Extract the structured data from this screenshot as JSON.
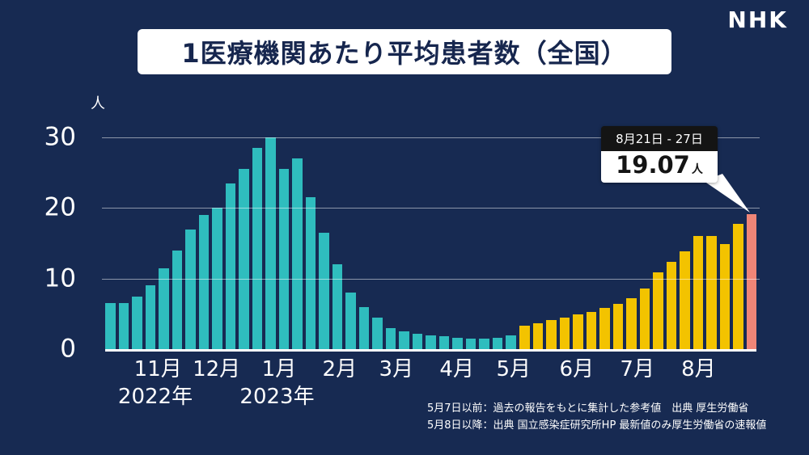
{
  "brand": {
    "logo": "NHK"
  },
  "header": {
    "title": "1医療機関あたり平均患者数（全国）"
  },
  "chart_data": {
    "type": "bar",
    "title": "1医療機関あたり平均患者数（全国）",
    "unit_label": "人",
    "ylim": [
      0,
      30
    ],
    "yticks": [
      30,
      20,
      10,
      0
    ],
    "grid": "horizontal",
    "legend_position": "none",
    "segments": [
      {
        "name": "5月7日以前（参考値・厚生労働省）",
        "color": "#2fbdbe",
        "values": [
          6.5,
          6.5,
          7.5,
          9.0,
          11.5,
          14.0,
          17.0,
          19.0,
          20.0,
          23.5,
          25.5,
          28.5,
          30.0,
          25.5,
          27.0,
          21.5,
          16.5,
          12.0,
          8.0,
          6.0,
          4.5,
          3.0,
          2.5,
          2.2,
          2.0,
          1.8,
          1.6,
          1.5,
          1.5,
          1.6,
          1.9
        ]
      },
      {
        "name": "5月8日以降（国立感染症研究所HP）",
        "color": "#f3c300",
        "values": [
          3.3,
          3.7,
          4.1,
          4.5,
          4.9,
          5.3,
          5.8,
          6.4,
          7.2,
          8.6,
          10.9,
          12.4,
          13.9,
          16.0,
          16.0,
          14.9,
          17.8
        ]
      },
      {
        "name": "最新値（厚生労働省の速報値）",
        "color": "#ef8577",
        "values": [
          19.07
        ]
      }
    ],
    "months": [
      {
        "label": "11月",
        "pos": 0.081
      },
      {
        "label": "12月",
        "pos": 0.171
      },
      {
        "label": "1月",
        "pos": 0.267
      },
      {
        "label": "2月",
        "pos": 0.36
      },
      {
        "label": "3月",
        "pos": 0.447
      },
      {
        "label": "4月",
        "pos": 0.54
      },
      {
        "label": "5月",
        "pos": 0.627
      },
      {
        "label": "6月",
        "pos": 0.724
      },
      {
        "label": "7月",
        "pos": 0.817
      },
      {
        "label": "8月",
        "pos": 0.911
      }
    ],
    "years": [
      {
        "label": "2022年",
        "pos": 0.077
      },
      {
        "label": "2023年",
        "pos": 0.264
      }
    ],
    "callout": {
      "date_range": "8月21日 - 27日",
      "value": "19.07",
      "unit": "人"
    }
  },
  "footnotes": [
    "5月7日以前：過去の報告をもとに集計した参考値　出典 厚生労働省",
    "5月8日以降：出典 国立感染症研究所HP 最新値のみ厚生労働省の速報値"
  ]
}
